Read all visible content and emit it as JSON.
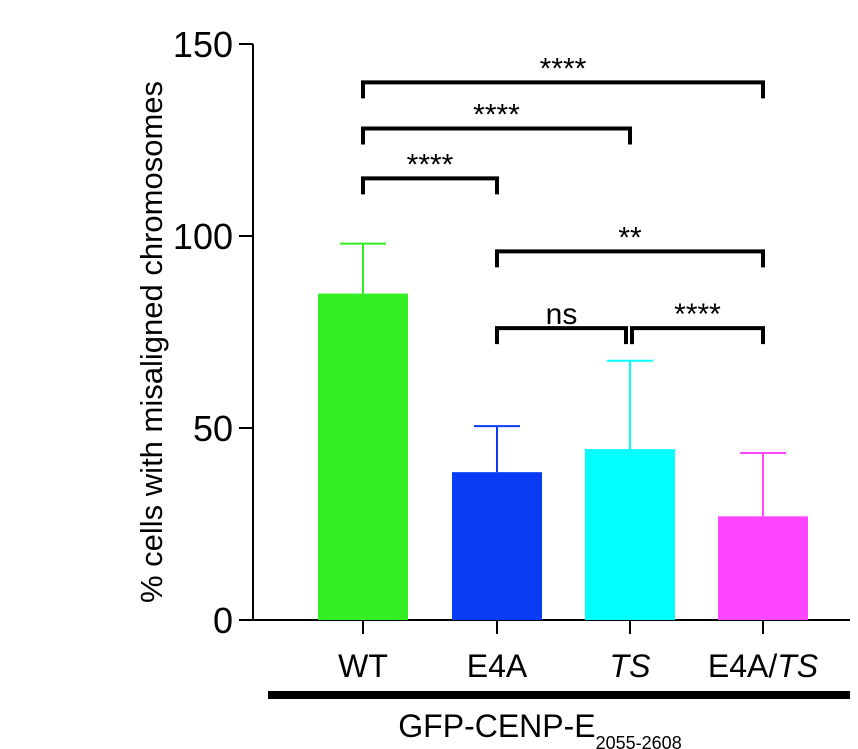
{
  "chart_data": {
    "type": "bar",
    "title": "",
    "xlabel": "",
    "ylabel": "% cells with misaligned chromosomes",
    "ylim": [
      0,
      150
    ],
    "yticks": [
      0,
      50,
      100,
      150
    ],
    "categories": [
      {
        "label": "WT",
        "italic": false
      },
      {
        "label": "E4A",
        "italic": false
      },
      {
        "label": "TS",
        "italic": true
      },
      {
        "label": "E4A/",
        "italic_suffix": "TS"
      }
    ],
    "values": [
      85,
      38.5,
      44.5,
      27
    ],
    "errors": [
      13,
      12,
      23,
      16.5
    ],
    "colors": [
      "#33ee22",
      "#0a3cf5",
      "#00ffff",
      "#ff44ff"
    ],
    "group_label": {
      "main": "GFP-CENP-E",
      "sub": "2055-2608"
    },
    "significance": [
      {
        "from": 0,
        "to": 3,
        "label": "****",
        "y": 140
      },
      {
        "from": 0,
        "to": 2,
        "label": "****",
        "y": 128
      },
      {
        "from": 0,
        "to": 1,
        "label": "****",
        "y": 115
      },
      {
        "from": 1,
        "to": 3,
        "label": "**",
        "y": 96
      },
      {
        "from": 1,
        "to": 2,
        "label": "ns",
        "y": 76
      },
      {
        "from": 2,
        "to": 3,
        "label": "****",
        "y": 76
      }
    ]
  }
}
